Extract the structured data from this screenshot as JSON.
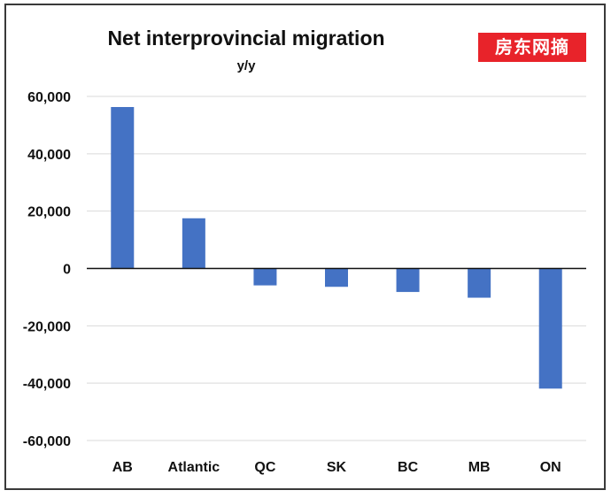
{
  "watermark": "房东网摘",
  "colors": {
    "bar": "#4472c4",
    "grid": "#d9d9d9",
    "axis": "#111111"
  },
  "chart_data": {
    "type": "bar",
    "title": "Net interprovincial migration",
    "subtitle": "y/y",
    "xlabel": "",
    "ylabel": "",
    "categories": [
      "AB",
      "Atlantic",
      "QC",
      "SK",
      "BC",
      "MB",
      "ON"
    ],
    "values": [
      56300,
      17500,
      -5900,
      -6400,
      -8200,
      -10200,
      -41900
    ],
    "ylim": [
      -60000,
      60000
    ],
    "yticks": [
      60000,
      40000,
      20000,
      0,
      -20000,
      -40000,
      -60000
    ],
    "ytick_labels": [
      "60,000",
      "40,000",
      "20,000",
      "0",
      "-20,000",
      "-40,000",
      "-60,000"
    ],
    "grid": true,
    "legend": "none"
  }
}
